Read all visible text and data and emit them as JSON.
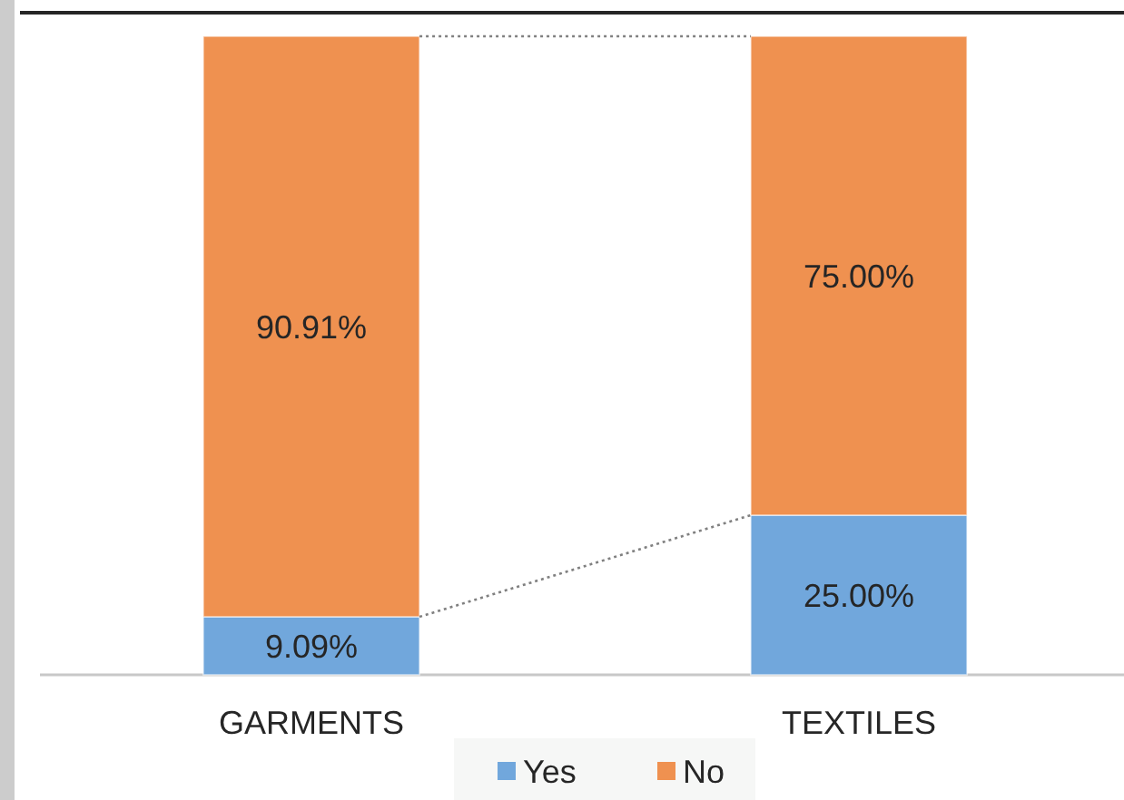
{
  "chart_data": {
    "type": "bar",
    "stacked": true,
    "categories": [
      "GARMENTS",
      "TEXTILES"
    ],
    "series": [
      {
        "name": "Yes",
        "color": "#71a7dc",
        "values": [
          9.09,
          25.0
        ],
        "value_labels": [
          "9.09%",
          "25.00%"
        ]
      },
      {
        "name": "No",
        "color": "#ef9150",
        "values": [
          90.91,
          75.0
        ],
        "value_labels": [
          "90.91%",
          "75.00%"
        ]
      }
    ],
    "legend": "bottom"
  }
}
